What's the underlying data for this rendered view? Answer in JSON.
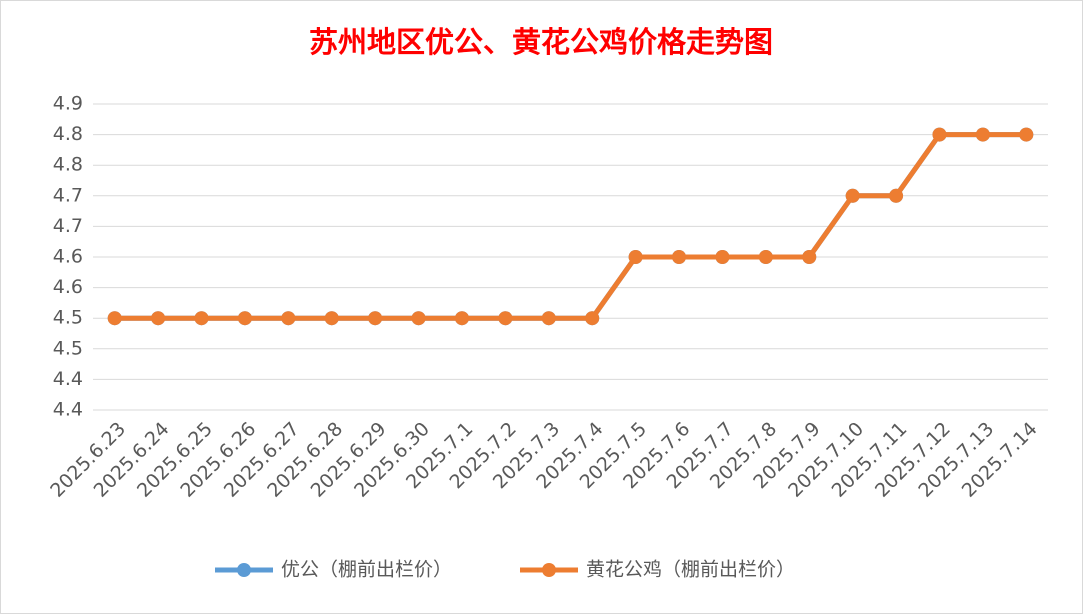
{
  "chart_data": {
    "type": "line",
    "title": "苏州地区优公、黄花公鸡价格走势图",
    "categories": [
      "2025.6.23",
      "2025.6.24",
      "2025.6.25",
      "2025.6.26",
      "2025.6.27",
      "2025.6.28",
      "2025.6.29",
      "2025.6.30",
      "2025.7.1",
      "2025.7.2",
      "2025.7.3",
      "2025.7.4",
      "2025.7.5",
      "2025.7.6",
      "2025.7.7",
      "2025.7.8",
      "2025.7.9",
      "2025.7.10",
      "2025.7.11",
      "2025.7.12",
      "2025.7.13",
      "2025.7.14"
    ],
    "series": [
      {
        "name": "优公（棚前出栏价）",
        "color": "#5b9bd5",
        "values": [
          4.5,
          4.5,
          4.5,
          4.5,
          4.5,
          4.5,
          4.5,
          4.5,
          4.5,
          4.5,
          4.5,
          4.5,
          4.6,
          4.6,
          4.6,
          4.6,
          4.6,
          4.7,
          4.7,
          4.8,
          4.8,
          4.8
        ]
      },
      {
        "name": "黄花公鸡（棚前出栏价）",
        "color": "#ed7d31",
        "values": [
          4.5,
          4.5,
          4.5,
          4.5,
          4.5,
          4.5,
          4.5,
          4.5,
          4.5,
          4.5,
          4.5,
          4.5,
          4.6,
          4.6,
          4.6,
          4.6,
          4.6,
          4.7,
          4.7,
          4.8,
          4.8,
          4.8
        ]
      }
    ],
    "ylim": [
      4.35,
      4.85
    ],
    "yticks": [
      {
        "value": 4.35,
        "label": "4.4"
      },
      {
        "value": 4.4,
        "label": "4.4"
      },
      {
        "value": 4.45,
        "label": "4.5"
      },
      {
        "value": 4.5,
        "label": "4.5"
      },
      {
        "value": 4.55,
        "label": "4.6"
      },
      {
        "value": 4.6,
        "label": "4.6"
      },
      {
        "value": 4.65,
        "label": "4.7"
      },
      {
        "value": 4.7,
        "label": "4.7"
      },
      {
        "value": 4.75,
        "label": "4.8"
      },
      {
        "value": 4.8,
        "label": "4.8"
      },
      {
        "value": 4.85,
        "label": "4.9"
      }
    ],
    "grid": true,
    "legend": "bottom"
  }
}
